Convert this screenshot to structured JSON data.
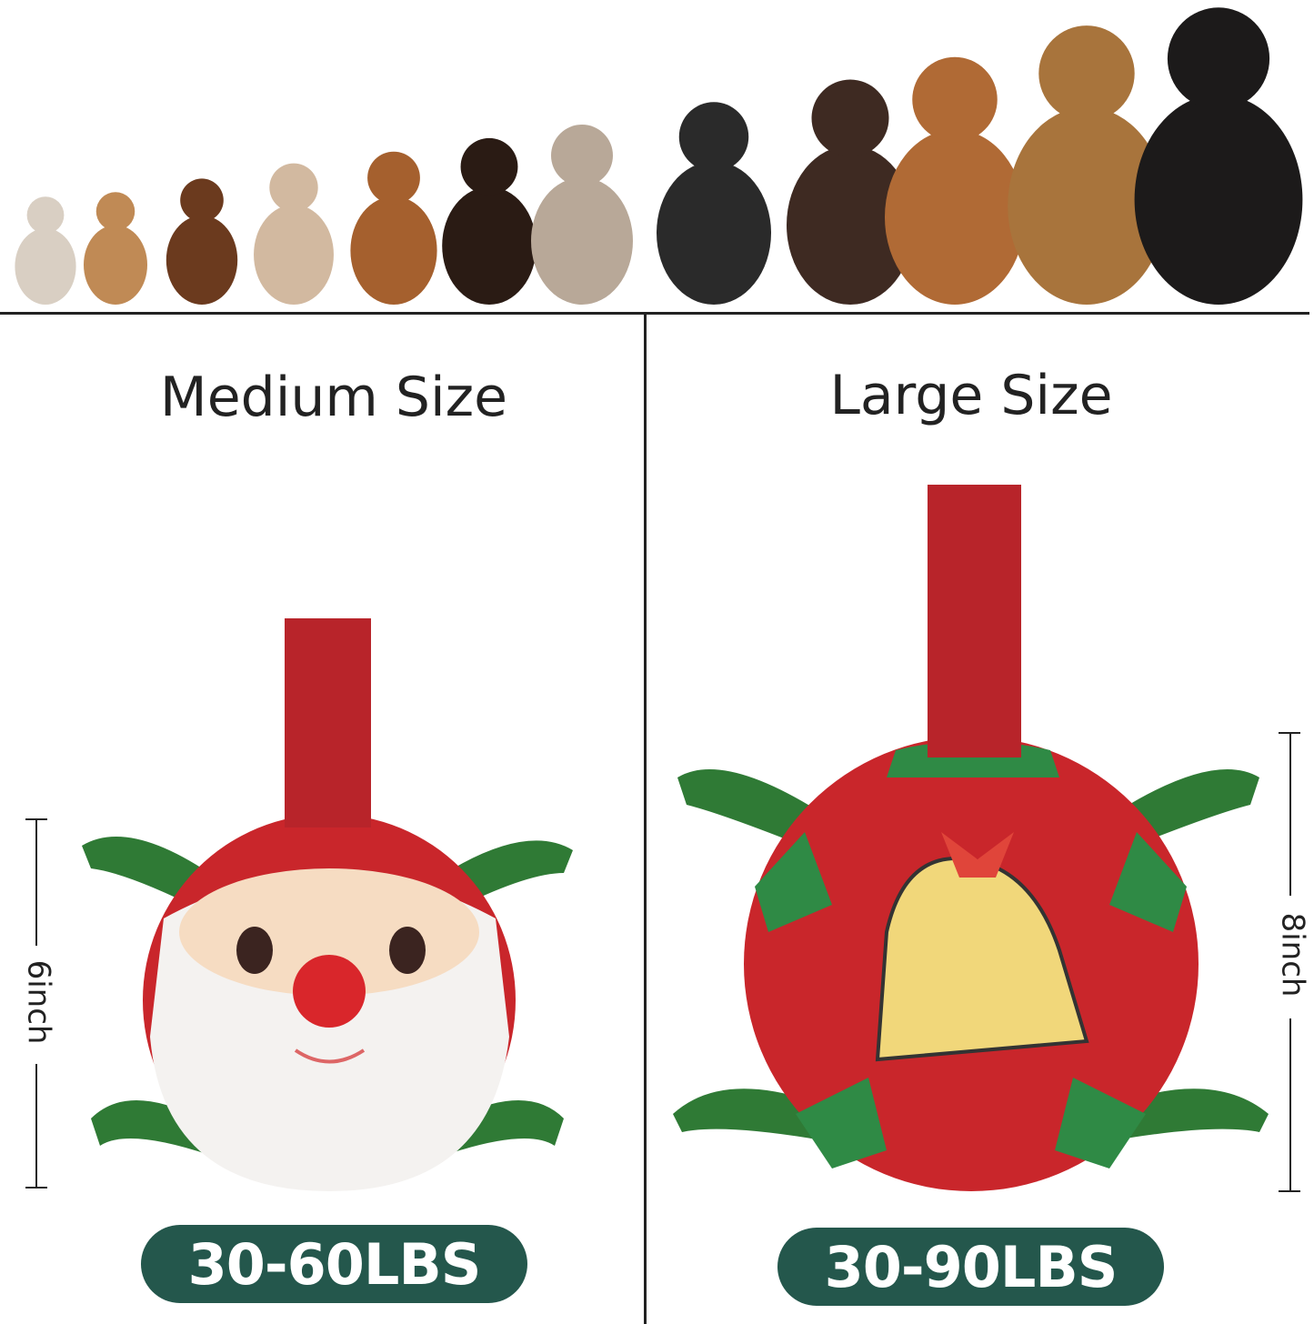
{
  "sections": [
    {
      "title": "Medium Size",
      "weight_range": "30-60LBS",
      "dimension": "6inch",
      "ball_design": "santa"
    },
    {
      "title": "Large Size",
      "weight_range": "30-90LBS",
      "dimension": "8inch",
      "ball_design": "bell"
    }
  ],
  "colors": {
    "pill": "#24574c",
    "strap_red": "#b8242a",
    "handle_green": "#2f7a35",
    "ball_red": "#c9262b",
    "ball_green": "#2f8a45"
  }
}
